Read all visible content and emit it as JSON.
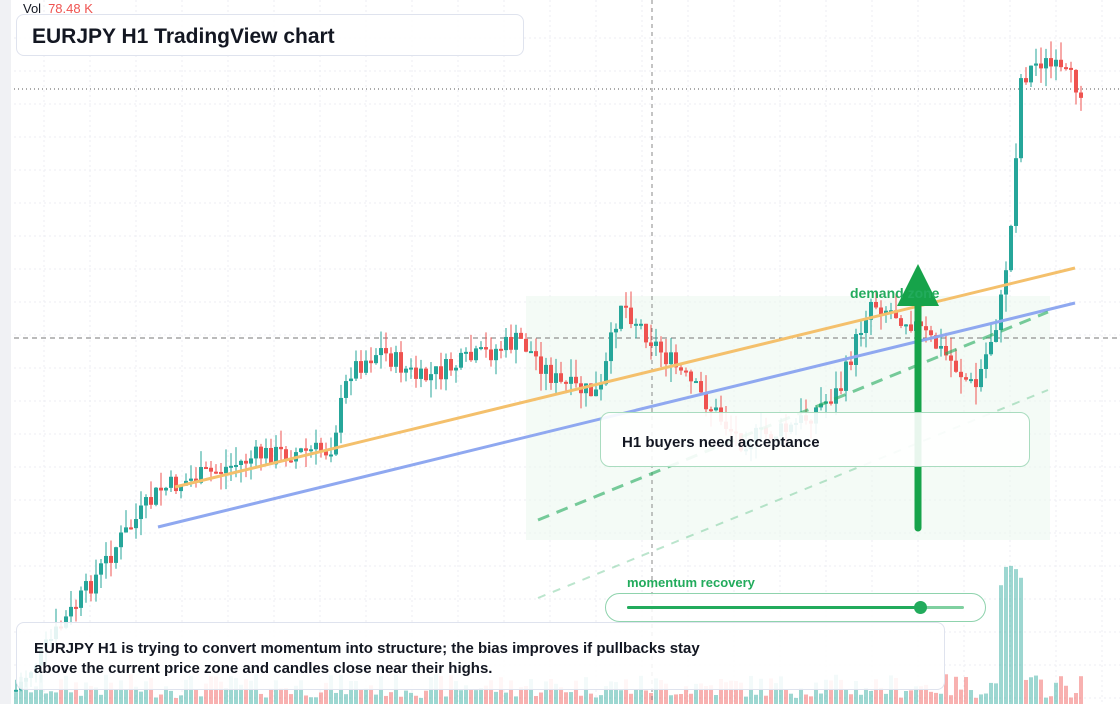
{
  "chart": {
    "title": "EURJPY H1 TradingView chart",
    "symbol": "EURJPY",
    "timeframe": "H1",
    "vol_label": "Vol",
    "vol_value": "78.48 K",
    "up_color": "#26a69a",
    "down_color": "#ef5350"
  },
  "annotations": {
    "callout": "H1 buyers need acceptance",
    "demand_zone_label": "demand zone",
    "momentum_label": "momentum recovery",
    "momentum_level": 0.87,
    "note_line1": "EURJPY H1 is trying to convert momentum into structure; the bias improves if pullbacks stay",
    "note_line2": "above the current price zone and candles close near their highs.",
    "trendline_colors": {
      "orange": "#f4c06c",
      "blue": "#8fa8f0",
      "green": "#22ab5c"
    }
  }
}
